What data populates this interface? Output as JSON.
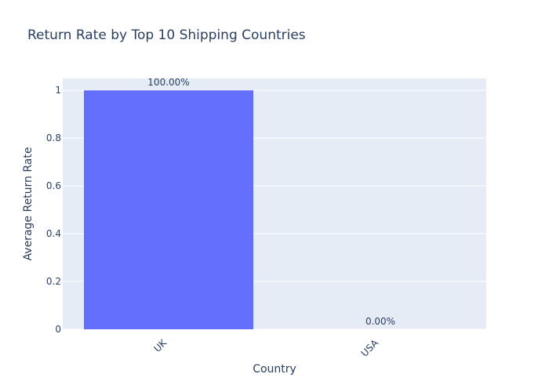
{
  "chart_data": {
    "type": "bar",
    "title": "Return Rate by Top 10 Shipping Countries",
    "xlabel": "Country",
    "ylabel": "Average Return Rate",
    "categories": [
      "UK",
      "USA"
    ],
    "values": [
      1.0,
      0.0
    ],
    "data_labels": [
      "100.00%",
      "0.00%"
    ],
    "ylim": [
      0,
      1.05
    ],
    "yticks": [
      0,
      0.2,
      0.4,
      0.6,
      0.8,
      1
    ],
    "ytick_labels": [
      "0",
      "0.2",
      "0.4",
      "0.6",
      "0.8",
      "1"
    ],
    "grid": true,
    "legend": "none",
    "colors": {
      "bar": "#636efa",
      "plot_bg": "#e5ecf6",
      "grid": "#ffffff",
      "text": "#2a3f5f"
    }
  }
}
